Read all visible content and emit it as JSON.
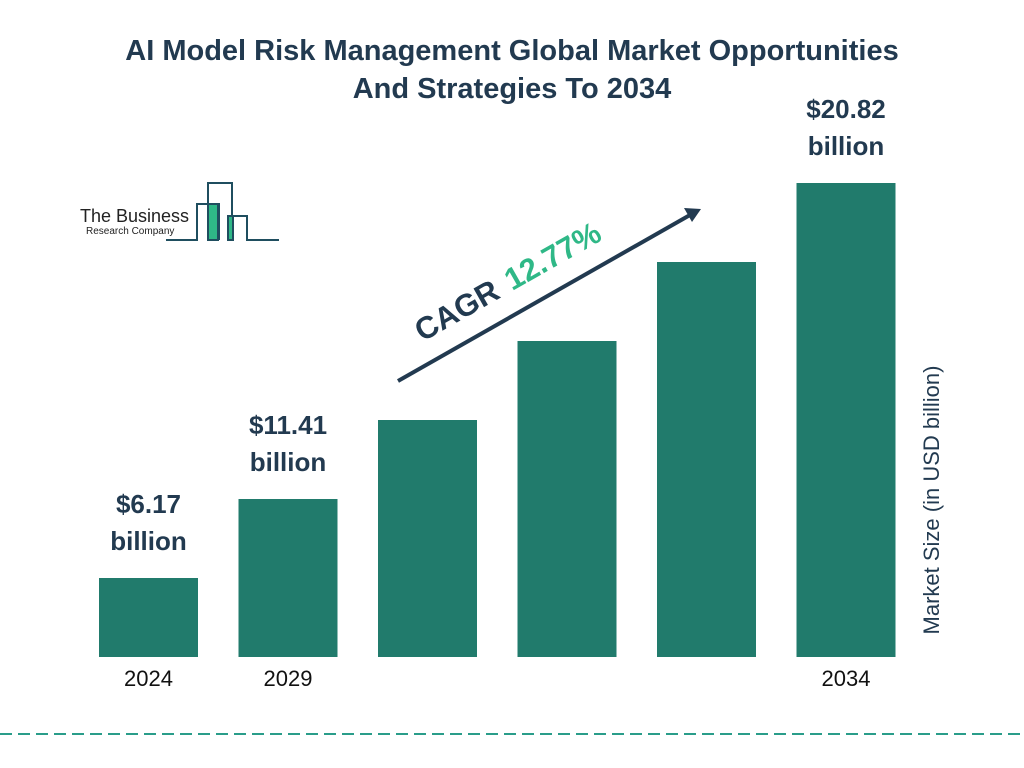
{
  "chart_data": {
    "type": "bar",
    "title": "AI Model Risk Management Global Market Opportunities And Strategies To 2034",
    "categories": [
      "2024",
      "2029",
      "",
      "",
      "",
      "2034"
    ],
    "values": [
      6.17,
      11.41,
      null,
      null,
      null,
      20.82
    ],
    "data_labels": [
      "$6.17 billion",
      "$11.41 billion",
      "",
      "",
      "",
      "$20.82 billion"
    ],
    "data_label_lines": [
      [
        "$6.17",
        "billion"
      ],
      [
        "$11.41",
        "billion"
      ],
      [],
      [],
      [],
      [
        "$20.82",
        "billion"
      ]
    ],
    "ylabel": "Market Size (in USD billion)",
    "xlabel": "",
    "grid": false,
    "annotation": {
      "label": "CAGR",
      "value": "12.77%"
    },
    "colors": {
      "bar": "#217b6c",
      "title": "#223a50",
      "cagr_value": "#2fb887",
      "divider": "#2a9d8a"
    }
  },
  "logo": {
    "line1": "The Business",
    "line2": "Research Company"
  }
}
